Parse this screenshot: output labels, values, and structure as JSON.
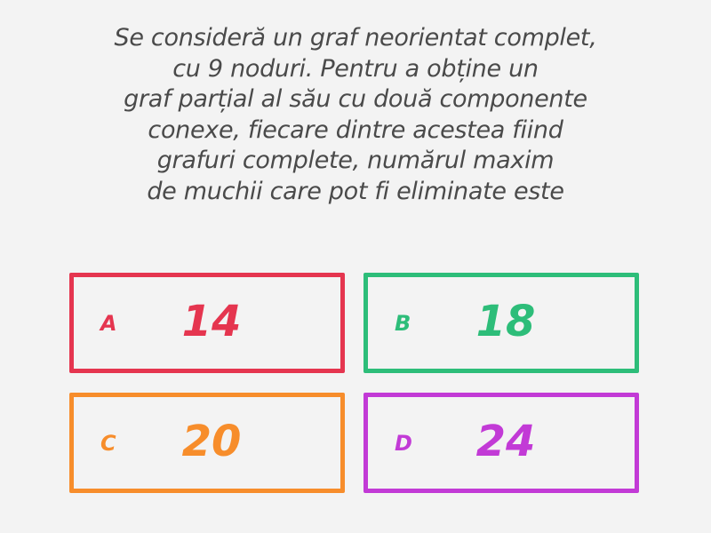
{
  "question": {
    "lines": [
      "Se consideră un graf neorientat complet,",
      "cu 9 noduri. Pentru a obține un",
      "graf parțial al său cu două componente",
      "conexe, fiecare dintre acestea fiind",
      "grafuri complete, numărul maxim",
      "de muchii care pot fi eliminate este"
    ]
  },
  "answers": [
    {
      "letter": "A",
      "value": "14",
      "color": "#e5354f"
    },
    {
      "letter": "B",
      "value": "18",
      "color": "#2dbd79"
    },
    {
      "letter": "C",
      "value": "20",
      "color": "#f78d2b"
    },
    {
      "letter": "D",
      "value": "24",
      "color": "#c23ad6"
    }
  ]
}
